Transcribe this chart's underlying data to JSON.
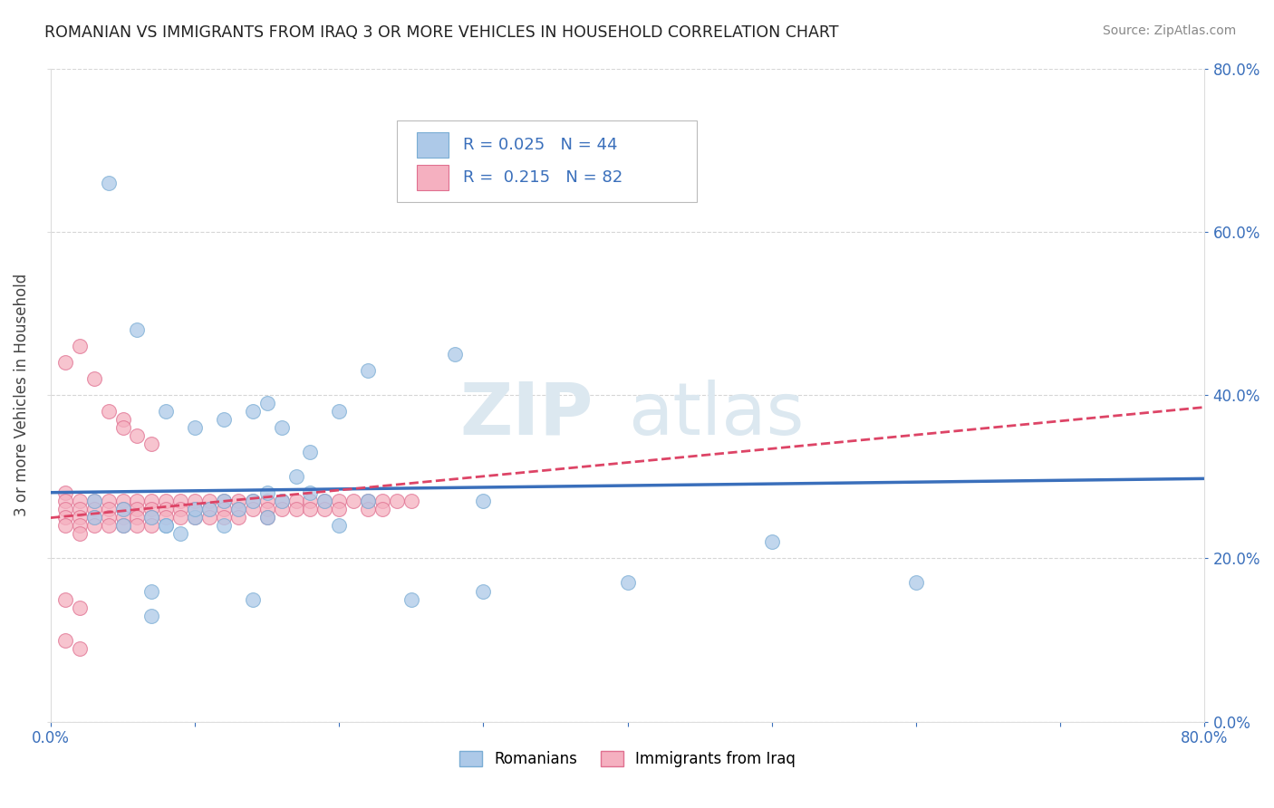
{
  "title": "ROMANIAN VS IMMIGRANTS FROM IRAQ 3 OR MORE VEHICLES IN HOUSEHOLD CORRELATION CHART",
  "source": "Source: ZipAtlas.com",
  "ylabel": "3 or more Vehicles in Household",
  "xlim": [
    0.0,
    0.8
  ],
  "ylim": [
    0.0,
    0.8
  ],
  "background_color": "#ffffff",
  "grid_color": "#cccccc",
  "watermark_zip": "ZIP",
  "watermark_atlas": "atlas",
  "watermark_color": "#dce8f0",
  "r_romanian": 0.025,
  "n_romanian": 44,
  "r_iraq": 0.215,
  "n_iraq": 82,
  "romanian_color": "#adc9e8",
  "romanian_edge_color": "#7aadd4",
  "iraq_color": "#f5b0c0",
  "iraq_edge_color": "#e07090",
  "romanian_line_color": "#3a6fbb",
  "iraq_line_color": "#dd4466",
  "romanian_scatter_x": [
    0.03,
    0.05,
    0.07,
    0.08,
    0.09,
    0.1,
    0.11,
    0.12,
    0.13,
    0.14,
    0.15,
    0.16,
    0.17,
    0.18,
    0.19,
    0.06,
    0.22,
    0.28,
    0.08,
    0.1,
    0.12,
    0.14,
    0.16,
    0.2,
    0.15,
    0.03,
    0.05,
    0.08,
    0.1,
    0.12,
    0.15,
    0.18,
    0.22,
    0.3,
    0.4,
    0.5,
    0.04,
    0.07,
    0.3,
    0.6,
    0.2,
    0.25,
    0.07,
    0.14
  ],
  "romanian_scatter_y": [
    0.27,
    0.26,
    0.25,
    0.24,
    0.23,
    0.25,
    0.26,
    0.27,
    0.26,
    0.27,
    0.28,
    0.27,
    0.3,
    0.28,
    0.27,
    0.48,
    0.43,
    0.45,
    0.38,
    0.36,
    0.37,
    0.38,
    0.36,
    0.38,
    0.39,
    0.25,
    0.24,
    0.24,
    0.26,
    0.24,
    0.25,
    0.33,
    0.27,
    0.27,
    0.17,
    0.22,
    0.66,
    0.16,
    0.16,
    0.17,
    0.24,
    0.15,
    0.13,
    0.15
  ],
  "iraq_scatter_x": [
    0.01,
    0.01,
    0.01,
    0.01,
    0.01,
    0.02,
    0.02,
    0.02,
    0.02,
    0.02,
    0.03,
    0.03,
    0.03,
    0.03,
    0.04,
    0.04,
    0.04,
    0.04,
    0.05,
    0.05,
    0.05,
    0.05,
    0.06,
    0.06,
    0.06,
    0.06,
    0.07,
    0.07,
    0.07,
    0.07,
    0.08,
    0.08,
    0.08,
    0.09,
    0.09,
    0.09,
    0.1,
    0.1,
    0.1,
    0.11,
    0.11,
    0.11,
    0.12,
    0.12,
    0.12,
    0.13,
    0.13,
    0.13,
    0.14,
    0.14,
    0.15,
    0.15,
    0.15,
    0.16,
    0.16,
    0.17,
    0.17,
    0.18,
    0.18,
    0.19,
    0.19,
    0.2,
    0.2,
    0.21,
    0.22,
    0.22,
    0.23,
    0.23,
    0.24,
    0.25,
    0.03,
    0.01,
    0.02,
    0.04,
    0.05,
    0.05,
    0.06,
    0.07,
    0.01,
    0.02,
    0.01,
    0.02
  ],
  "iraq_scatter_y": [
    0.28,
    0.27,
    0.26,
    0.25,
    0.24,
    0.27,
    0.26,
    0.25,
    0.24,
    0.23,
    0.27,
    0.26,
    0.25,
    0.24,
    0.27,
    0.26,
    0.25,
    0.24,
    0.27,
    0.26,
    0.25,
    0.24,
    0.27,
    0.26,
    0.25,
    0.24,
    0.27,
    0.26,
    0.25,
    0.24,
    0.27,
    0.26,
    0.25,
    0.27,
    0.26,
    0.25,
    0.27,
    0.26,
    0.25,
    0.27,
    0.26,
    0.25,
    0.27,
    0.26,
    0.25,
    0.27,
    0.26,
    0.25,
    0.27,
    0.26,
    0.27,
    0.26,
    0.25,
    0.27,
    0.26,
    0.27,
    0.26,
    0.27,
    0.26,
    0.27,
    0.26,
    0.27,
    0.26,
    0.27,
    0.27,
    0.26,
    0.27,
    0.26,
    0.27,
    0.27,
    0.42,
    0.44,
    0.46,
    0.38,
    0.37,
    0.36,
    0.35,
    0.34,
    0.15,
    0.14,
    0.1,
    0.09
  ]
}
